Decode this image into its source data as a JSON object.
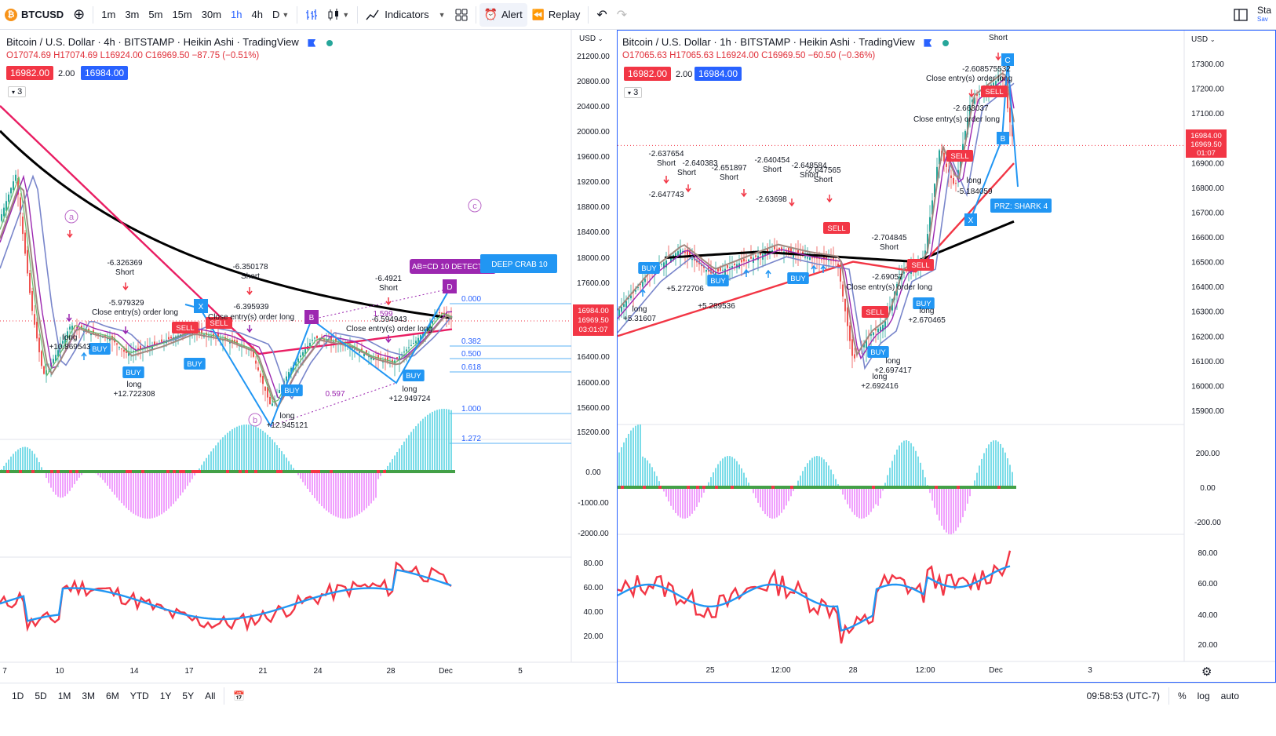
{
  "toolbar": {
    "symbol": "BTCUSD",
    "symbol_icon": "bitcoin-icon",
    "intervals": [
      "1m",
      "3m",
      "5m",
      "15m",
      "30m",
      "1h",
      "4h",
      "D"
    ],
    "active_interval": "1h",
    "indicators_label": "Indicators",
    "alert_label": "Alert",
    "replay_label": "Replay",
    "right_label_1": "Sta",
    "right_label_2": "Sav"
  },
  "left_chart": {
    "title": "Bitcoin / U.S. Dollar · 4h · BITSTAMP · Heikin Ashi · TradingView",
    "ohlc": "O17074.69 H17074.69 L16924.00 C16969.50 −87.75 (−0.51%)",
    "sell_price": "16982.00",
    "spread": "2.00",
    "buy_price": "16984.00",
    "counter": "3",
    "currency": "USD",
    "price_ticks": [
      "21200.00",
      "20800.00",
      "20400.00",
      "20000.00",
      "19600.00",
      "19200.00",
      "18800.00",
      "18400.00",
      "18000.00",
      "17600.00",
      "16400.00",
      "16000.00",
      "15600.00",
      "15200.00"
    ],
    "price_tag_1": "16984.00",
    "price_tag_2": "16969.50",
    "price_tag_3": "03:01:07",
    "osc_ticks": [
      "0.00",
      "-1000.00",
      "-2000.00"
    ],
    "rsi_ticks": [
      "80.00",
      "60.00",
      "40.00",
      "20.00"
    ],
    "time_ticks": [
      "7",
      "10",
      "14",
      "17",
      "21",
      "24",
      "28",
      "Dec",
      "5"
    ],
    "fib_levels": [
      "0.000",
      "0.382",
      "0.500",
      "0.618",
      "1.000",
      "1.272"
    ],
    "pattern_label": "AB=CD 10 DETECTED",
    "crab_label": "DEEP CRAB 10",
    "wave_labels": [
      "a",
      "b",
      "c"
    ],
    "harmonic_points": [
      "X",
      "B",
      "D"
    ],
    "annotations": [
      {
        "text": "-6.326369"
      },
      {
        "text": "Short"
      },
      {
        "text": "-5.979329"
      },
      {
        "text": "Close entry(s) order long"
      },
      {
        "text": "long"
      },
      {
        "text": "+10.869543"
      },
      {
        "text": "long"
      },
      {
        "text": "+12.722308"
      },
      {
        "text": "-6.350178"
      },
      {
        "text": "Short"
      },
      {
        "text": "-6.395939"
      },
      {
        "text": "Close entry(s) order long"
      },
      {
        "text": "-6.4921"
      },
      {
        "text": "Short"
      },
      {
        "text": "-6.594943"
      },
      {
        "text": "Close entry(s) order long"
      },
      {
        "text": "1.599"
      },
      {
        "text": "0.597"
      },
      {
        "text": "long"
      },
      {
        "text": "+12.945121"
      },
      {
        "text": "long"
      },
      {
        "text": "+12.949724"
      }
    ],
    "buy_label": "BUY",
    "sell_label": "SELL"
  },
  "right_chart": {
    "title": "Bitcoin / U.S. Dollar · 1h · BITSTAMP · Heikin Ashi · TradingView",
    "ohlc": "O17065.63 H17065.63 L16924.00 C16969.50 −60.50 (−0.36%)",
    "sell_price": "16982.00",
    "spread": "2.00",
    "buy_price": "16984.00",
    "counter": "3",
    "currency": "USD",
    "price_ticks": [
      "17300.00",
      "17200.00",
      "17100.00",
      "16900.00",
      "16800.00",
      "16700.00",
      "16600.00",
      "16500.00",
      "16400.00",
      "16300.00",
      "16200.00",
      "16100.00",
      "16000.00",
      "15900.00"
    ],
    "price_tag_1": "16984.00",
    "price_tag_2": "16969.50",
    "price_tag_3": "01:07",
    "osc_ticks": [
      "200.00",
      "0.00",
      "-200.00"
    ],
    "rsi_ticks": [
      "80.00",
      "60.00",
      "40.00",
      "20.00"
    ],
    "time_ticks": [
      "25",
      "12:00",
      "28",
      "12:00",
      "Dec",
      "3"
    ],
    "przl_label": "PRZ: SHARK 4",
    "harmonic_points": [
      "X",
      "B",
      "C"
    ],
    "annotations": [
      {
        "text": "Short"
      },
      {
        "text": "-2.608575532"
      },
      {
        "text": "Close entry(s) order long"
      },
      {
        "text": "-2.663037"
      },
      {
        "text": "Close entry(s) order long"
      },
      {
        "text": "-2.637654"
      },
      {
        "text": "Short"
      },
      {
        "text": "-2.640383"
      },
      {
        "text": "Short"
      },
      {
        "text": "-2.651897"
      },
      {
        "text": "Short"
      },
      {
        "text": "-2.640454"
      },
      {
        "text": "Short"
      },
      {
        "text": "-2.648584"
      },
      {
        "text": "Short"
      },
      {
        "text": "-2.647565"
      },
      {
        "text": "Short"
      },
      {
        "text": "-2.647743"
      },
      {
        "text": "-2.63698"
      },
      {
        "text": "-2.704845"
      },
      {
        "text": "Short"
      },
      {
        "text": "long"
      },
      {
        "text": "-5.184059"
      },
      {
        "text": "long"
      },
      {
        "text": "+5.31607"
      },
      {
        "text": "+5.272706"
      },
      {
        "text": "+5.289536"
      },
      {
        "text": "long"
      },
      {
        "text": "+2.670465"
      },
      {
        "text": "long"
      },
      {
        "text": "+2.697417"
      },
      {
        "text": "long"
      },
      {
        "text": "+2.692416"
      },
      {
        "text": "-2.69057"
      },
      {
        "text": "Close entry(s) order long"
      }
    ],
    "buy_label": "BUY",
    "sell_label": "SELL"
  },
  "bottombar": {
    "ranges": [
      "1D",
      "5D",
      "1M",
      "3M",
      "6M",
      "YTD",
      "1Y",
      "5Y",
      "All"
    ],
    "time": "09:58:53 (UTC-7)",
    "percent": "%",
    "log": "log",
    "auto": "auto"
  },
  "colors": {
    "buy": "#2962ff",
    "sell": "#f23645",
    "pattern": "#9c27b0",
    "ema_black": "#000000",
    "rsi_red": "#f23645",
    "rsi_blue": "#2196f3"
  }
}
